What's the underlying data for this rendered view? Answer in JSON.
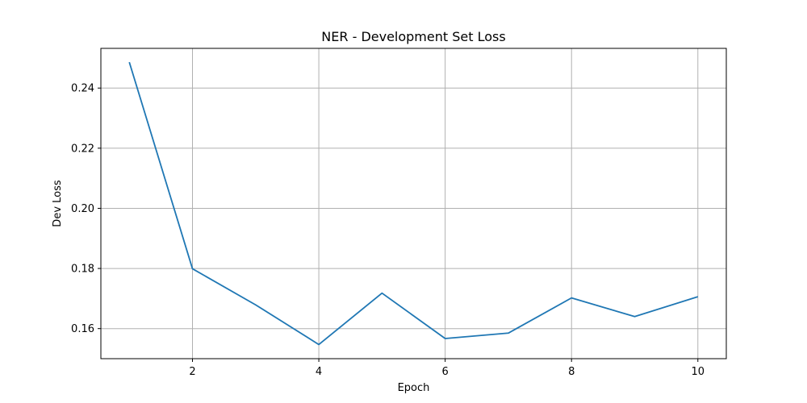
{
  "chart_data": {
    "type": "line",
    "title": "NER - Development Set Loss",
    "xlabel": "Epoch",
    "ylabel": "Dev Loss",
    "xlim": [
      0.55,
      10.45
    ],
    "ylim": [
      0.15,
      0.2532
    ],
    "x_ticks": [
      2,
      4,
      6,
      8,
      10
    ],
    "x_tick_labels": [
      "2",
      "4",
      "6",
      "8",
      "10"
    ],
    "y_ticks": [
      0.16,
      0.18,
      0.2,
      0.22,
      0.24
    ],
    "y_tick_labels": [
      "0.16",
      "0.18",
      "0.20",
      "0.22",
      "0.24"
    ],
    "grid": true,
    "legend": "none",
    "series": [
      {
        "color": "#1f77b4",
        "x": [
          1,
          2,
          3,
          4,
          5,
          6,
          7,
          8,
          9,
          10
        ],
        "y": [
          0.2486,
          0.1799,
          0.1679,
          0.1547,
          0.1718,
          0.1567,
          0.1585,
          0.1702,
          0.164,
          0.1706
        ]
      }
    ]
  }
}
